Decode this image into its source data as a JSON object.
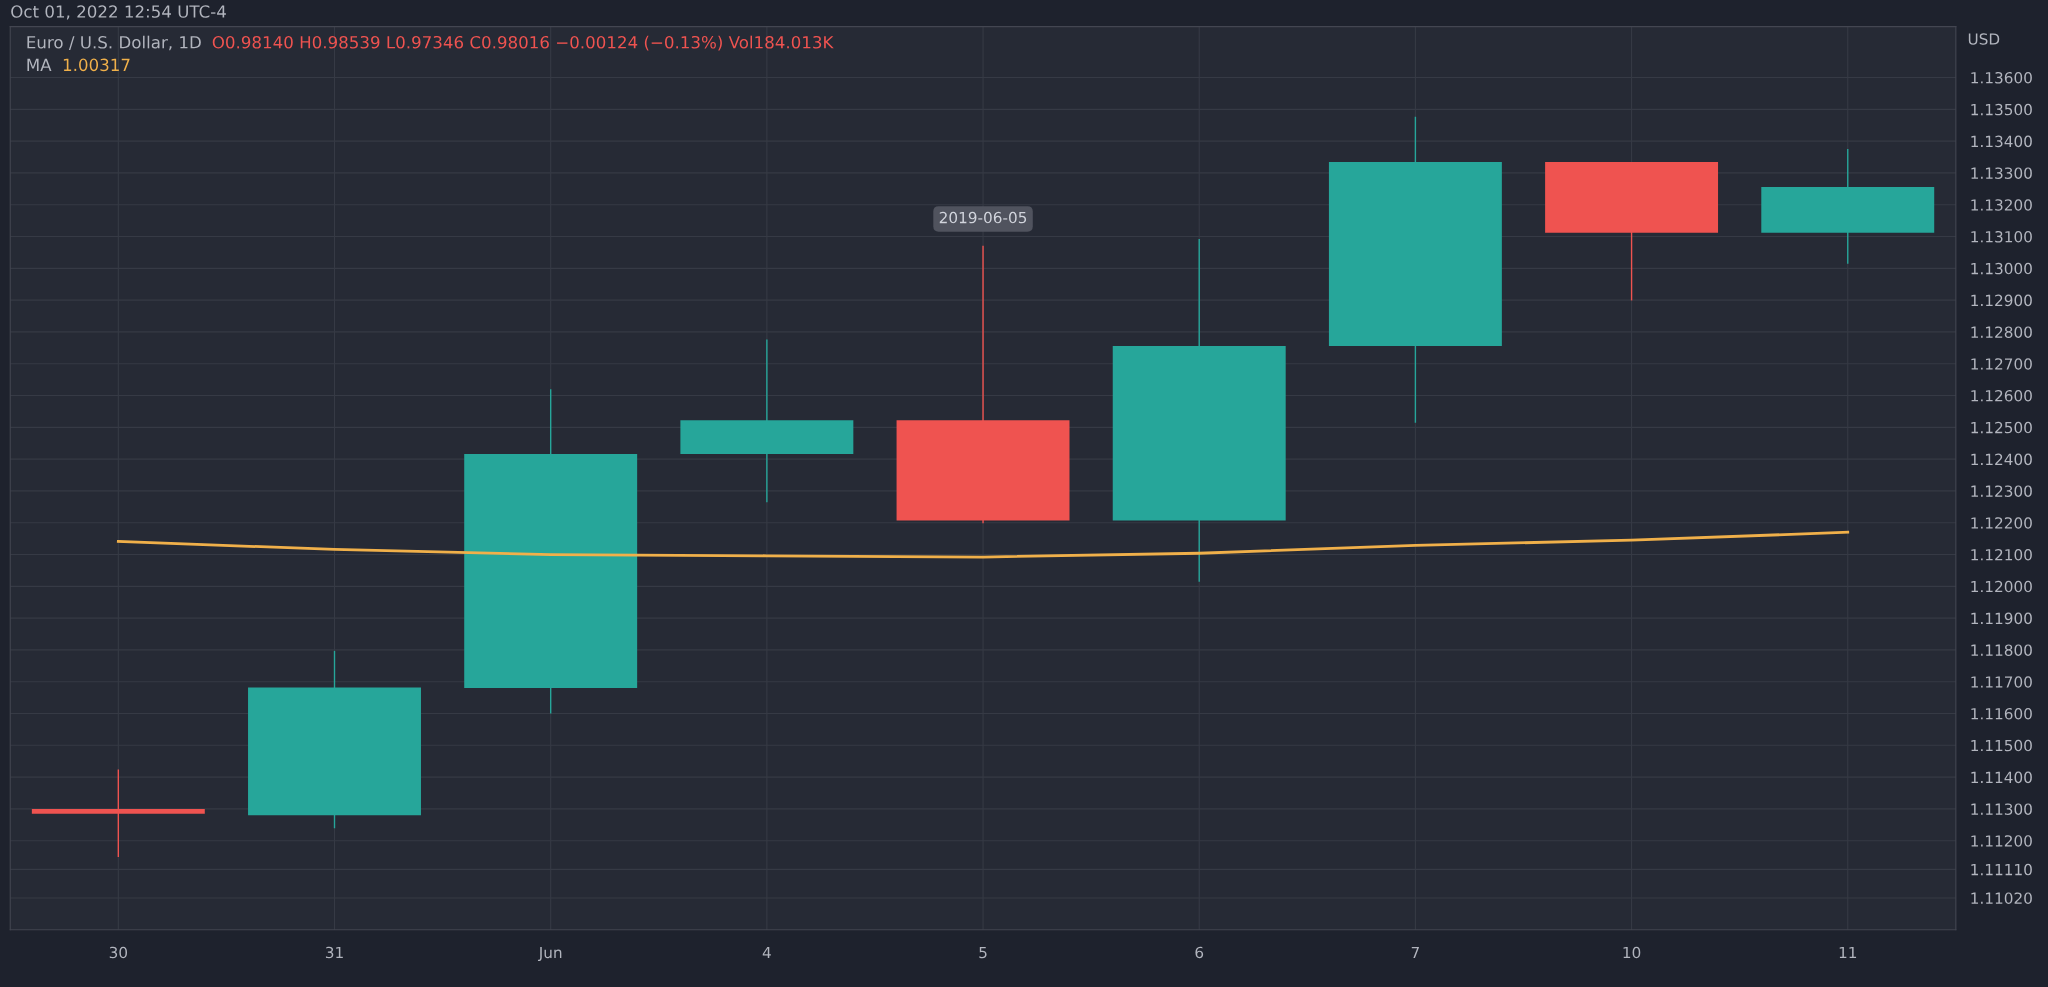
{
  "chart_data": {
    "type": "candlestick",
    "title": "Euro / U.S. Dollar, 1D",
    "ylabel": "USD",
    "annotations": [
      "O0.98140 H0.98539 L0.97346 C0.98016 −0.00124 (−0.13%) Vol184.013K",
      "1.00317",
      "Oct 01, 2022 12:54 UTC-4",
      {
        "text": "2019-06-05",
        "x": "5",
        "y": 1.13071
      }
    ],
    "categories": [
      "30",
      "31",
      "Jun",
      "4",
      "5",
      "6",
      "7",
      "10",
      "11"
    ],
    "ohlc": [
      [
        1.113,
        1.11424,
        1.11149,
        1.11285
      ],
      [
        1.1128,
        1.11797,
        1.11239,
        1.11682
      ],
      [
        1.1168,
        1.1262,
        1.116,
        1.12416
      ],
      [
        1.12416,
        1.12776,
        1.12264,
        1.12522
      ],
      [
        1.12522,
        1.13071,
        1.12198,
        1.12207
      ],
      [
        1.12207,
        1.13092,
        1.12014,
        1.12756
      ],
      [
        1.12756,
        1.13477,
        1.12514,
        1.13334
      ],
      [
        1.13334,
        1.13334,
        1.12899,
        1.13112
      ],
      [
        1.13112,
        1.13375,
        1.13014,
        1.13256
      ]
    ],
    "colors": [
      "#ef5350",
      "#26a69a",
      "#26a69a",
      "#26a69a",
      "#ef5350",
      "#26a69a",
      "#26a69a",
      "#ef5350",
      "#26a69a"
    ],
    "series": [
      {
        "name": "MA",
        "type": "line",
        "color": "#f0b04a",
        "values": [
          1.12141,
          1.12116,
          1.121,
          1.12096,
          1.12092,
          1.12104,
          1.12129,
          1.12145,
          1.1217
        ]
      }
    ],
    "ylim": [
      1.1092,
      1.1376
    ],
    "yticks": [
      {
        "value": 1.136,
        "label": "1.13600"
      },
      {
        "value": 1.135,
        "label": "1.13500"
      },
      {
        "value": 1.134,
        "label": "1.13400"
      },
      {
        "value": 1.133,
        "label": "1.13300"
      },
      {
        "value": 1.132,
        "label": "1.13200"
      },
      {
        "value": 1.131,
        "label": "1.13100"
      },
      {
        "value": 1.13,
        "label": "1.13000"
      },
      {
        "value": 1.129,
        "label": "1.12900"
      },
      {
        "value": 1.128,
        "label": "1.12800"
      },
      {
        "value": 1.127,
        "label": "1.12700"
      },
      {
        "value": 1.126,
        "label": "1.12600"
      },
      {
        "value": 1.125,
        "label": "1.12500"
      },
      {
        "value": 1.124,
        "label": "1.12400"
      },
      {
        "value": 1.123,
        "label": "1.12300"
      },
      {
        "value": 1.122,
        "label": "1.12200"
      },
      {
        "value": 1.121,
        "label": "1.12100"
      },
      {
        "value": 1.12,
        "label": "1.12000"
      },
      {
        "value": 1.119,
        "label": "1.11900"
      },
      {
        "value": 1.118,
        "label": "1.11800"
      },
      {
        "value": 1.117,
        "label": "1.11700"
      },
      {
        "value": 1.116,
        "label": "1.11600"
      },
      {
        "value": 1.115,
        "label": "1.11500"
      },
      {
        "value": 1.114,
        "label": "1.11400"
      },
      {
        "value": 1.113,
        "label": "1.11300"
      },
      {
        "value": 1.112,
        "label": "1.11200"
      },
      {
        "value": 1.1111,
        "label": "1.11110"
      },
      {
        "value": 1.1102,
        "label": "1.11020"
      }
    ],
    "grid": true
  }
}
